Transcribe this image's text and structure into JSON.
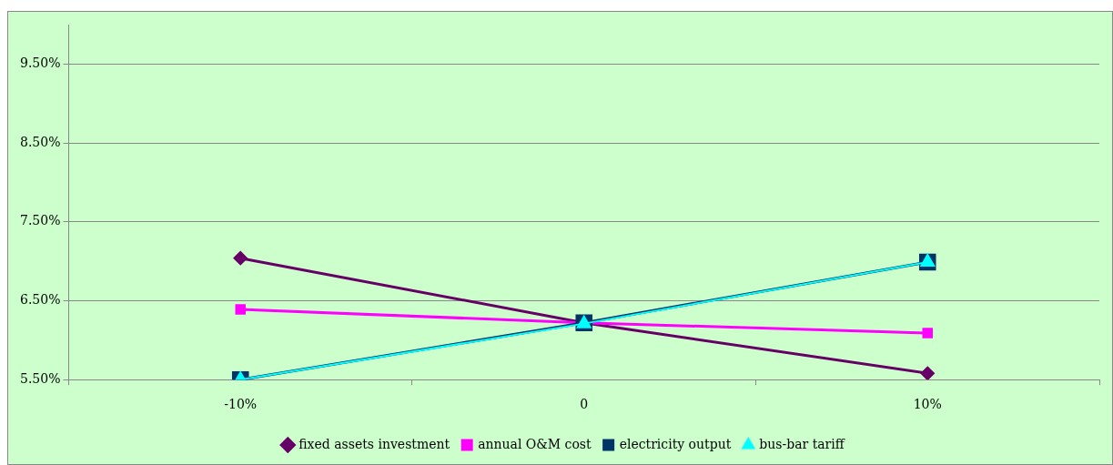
{
  "chart_data": {
    "type": "line",
    "categories": [
      "-10%",
      "0",
      "10%"
    ],
    "series": [
      {
        "name": "fixed assets investment",
        "color": "#660066",
        "values": [
          7.04,
          6.22,
          5.58
        ],
        "marker": "diamond"
      },
      {
        "name": "annual O&M cost",
        "color": "#ff00ff",
        "values": [
          6.39,
          6.22,
          6.09
        ],
        "marker": "square"
      },
      {
        "name": "electricity output",
        "color": "#003366",
        "values": [
          5.5,
          6.22,
          6.99
        ],
        "marker": "square"
      },
      {
        "name": "bus-bar tariff",
        "color": "#00ffff",
        "values": [
          5.5,
          6.21,
          6.99
        ],
        "marker": "triangle"
      }
    ],
    "ylim": [
      5.5,
      10
    ],
    "yticks": [
      {
        "value": 5.5,
        "label": "5.50%"
      },
      {
        "value": 6.5,
        "label": "6.50%"
      },
      {
        "value": 7.5,
        "label": "7.50%"
      },
      {
        "value": 8.5,
        "label": "8.50%"
      },
      {
        "value": 9.5,
        "label": "9.50%"
      }
    ],
    "grid": "y",
    "legend": "bottom"
  }
}
